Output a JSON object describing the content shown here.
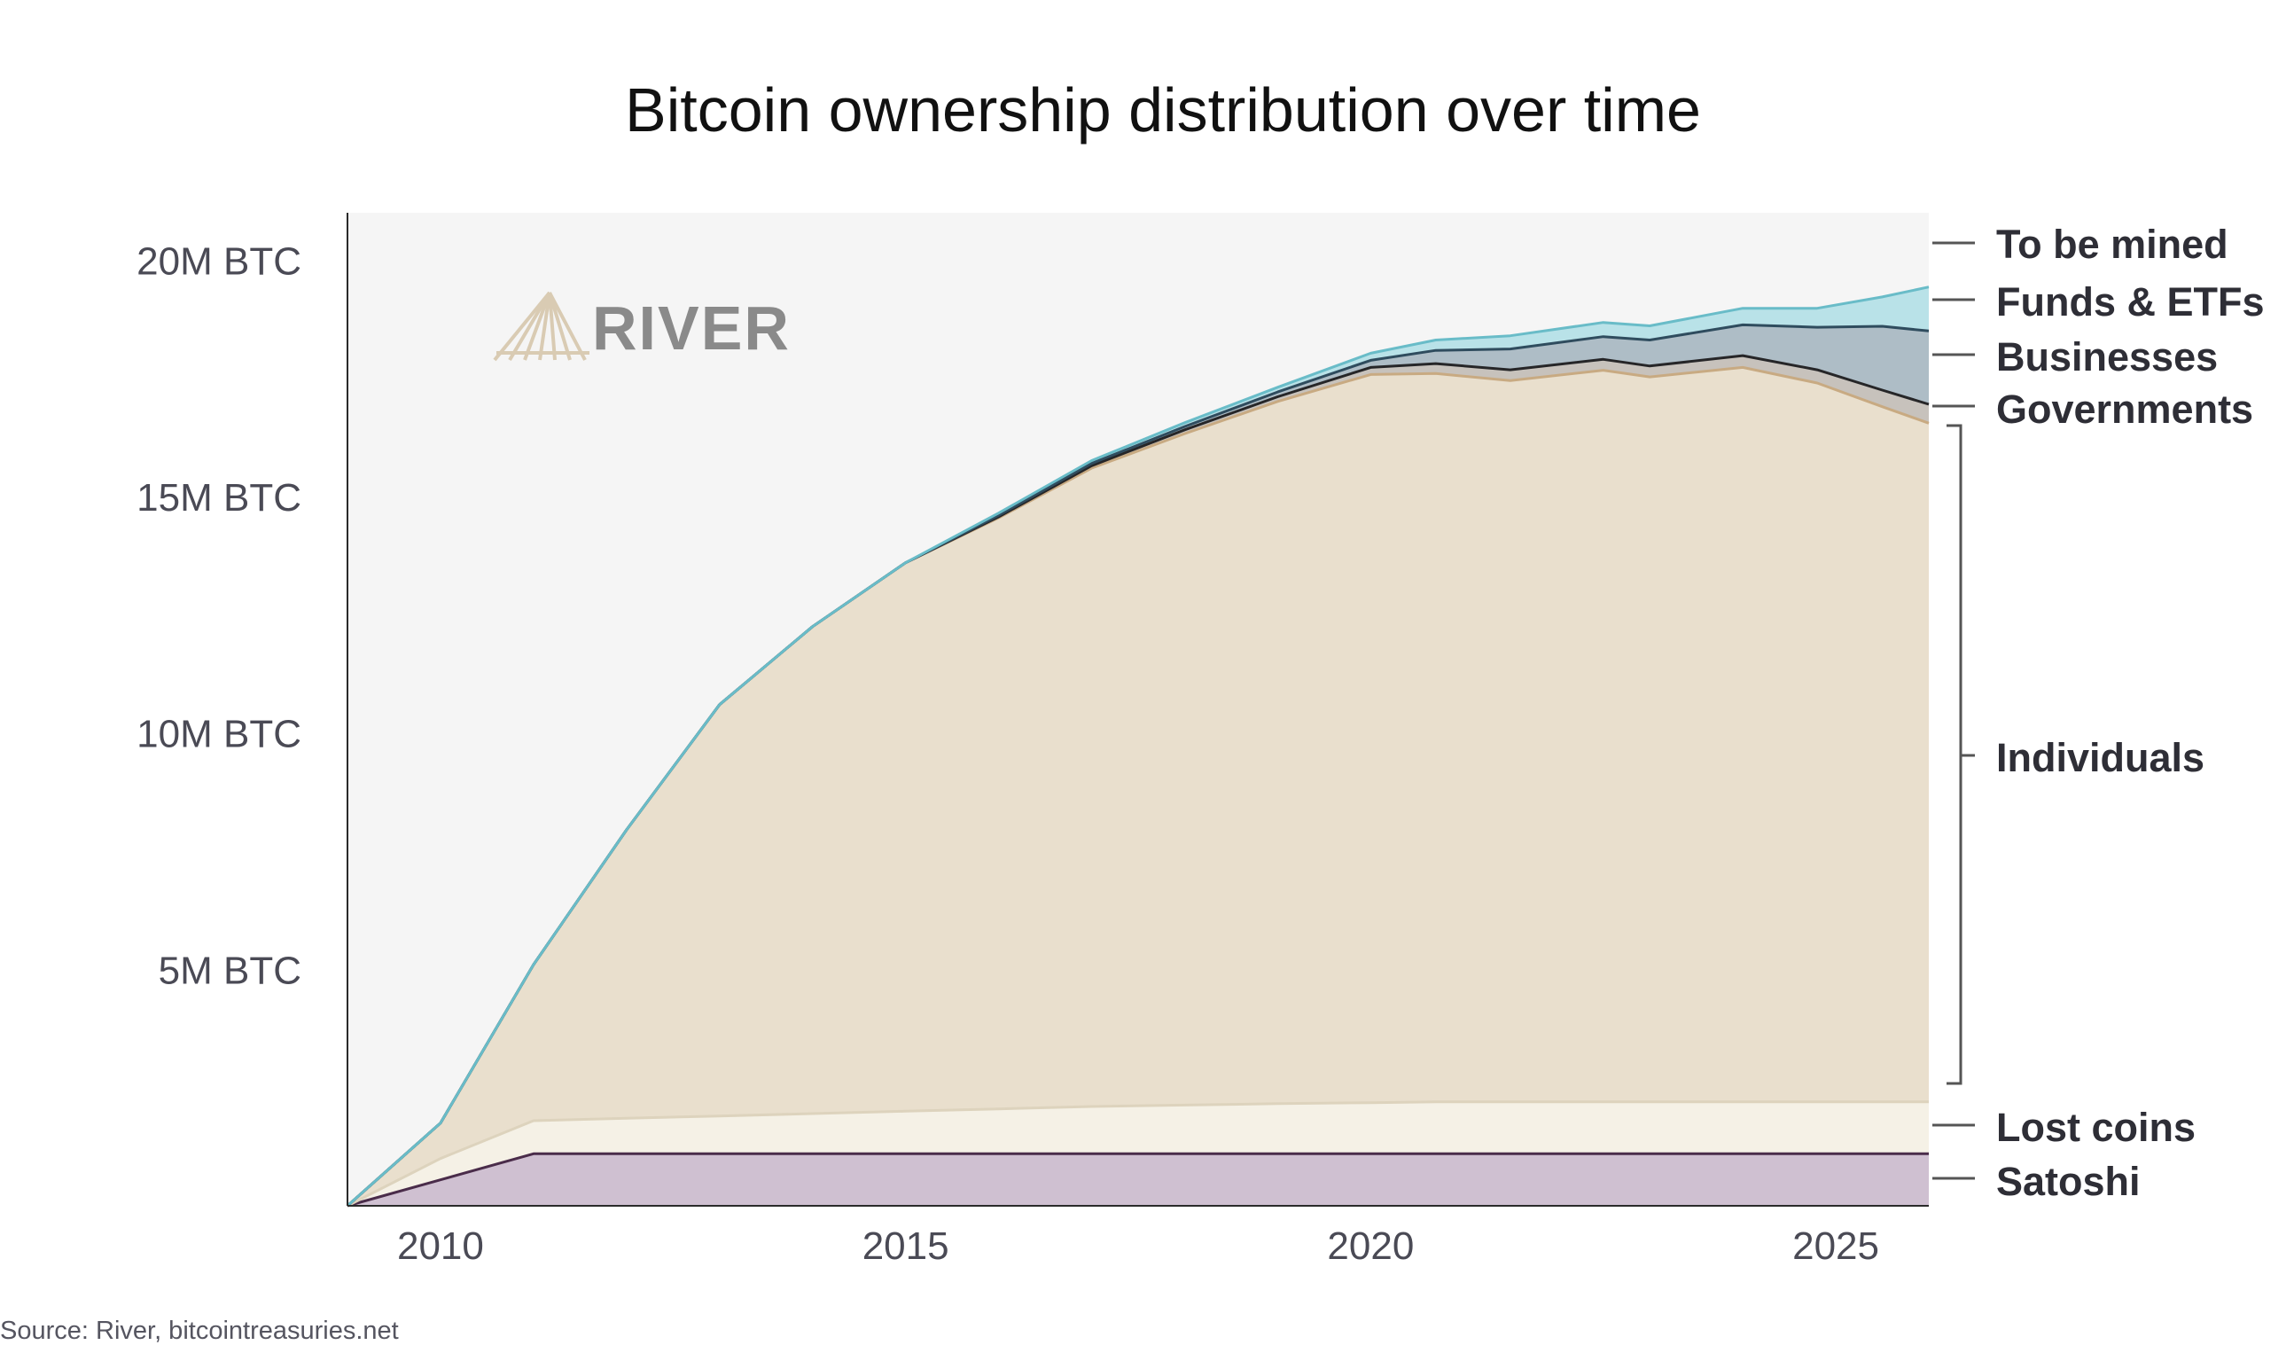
{
  "chart_data": {
    "type": "area",
    "stacked": true,
    "title": "Bitcoin ownership distribution over time",
    "xlabel": "",
    "ylabel": "",
    "x_range": [
      2009,
      2026
    ],
    "ylim": [
      0,
      21000000
    ],
    "x_ticks": [
      2010,
      2015,
      2020,
      2025
    ],
    "x_tick_labels": [
      "2010",
      "2015",
      "2020",
      "2025"
    ],
    "y_ticks": [
      5000000,
      10000000,
      15000000,
      20000000
    ],
    "y_tick_labels": [
      "5M BTC",
      "10M BTC",
      "15M BTC",
      "20M BTC"
    ],
    "x": [
      2009.0,
      2010.0,
      2011.0,
      2012.0,
      2013.0,
      2014.0,
      2015.0,
      2016.0,
      2017.0,
      2018.0,
      2019.0,
      2020.0,
      2020.7,
      2021.5,
      2022.5,
      2023.0,
      2024.0,
      2024.8,
      2025.5,
      2026.0
    ],
    "series": [
      {
        "name": "Satoshi",
        "color": "#cfc0d1",
        "line": "#4a2c4a",
        "values": [
          0,
          550000,
          1100000,
          1100000,
          1100000,
          1100000,
          1100000,
          1100000,
          1100000,
          1100000,
          1100000,
          1100000,
          1100000,
          1100000,
          1100000,
          1100000,
          1100000,
          1100000,
          1100000,
          1100000
        ]
      },
      {
        "name": "Lost coins",
        "color": "#f5f1e6",
        "line": "#ddd3bd",
        "values": [
          0,
          450000,
          700000,
          750000,
          800000,
          850000,
          900000,
          950000,
          1000000,
          1030000,
          1060000,
          1080000,
          1100000,
          1100000,
          1100000,
          1100000,
          1100000,
          1100000,
          1100000,
          1100000
        ]
      },
      {
        "name": "Individuals",
        "color": "#e9dfcd",
        "line": "#c8aa82",
        "values": [
          0,
          750000,
          3300000,
          6100000,
          8700000,
          10300000,
          11600000,
          12500000,
          13500000,
          14200000,
          14850000,
          15400000,
          15400000,
          15250000,
          15470000,
          15330000,
          15530000,
          15200000,
          14700000,
          14350000
        ]
      },
      {
        "name": "Governments",
        "color": "#c7c2bc",
        "line": "#262628",
        "values": [
          0,
          0,
          0,
          0,
          0,
          0,
          0,
          20000,
          50000,
          80000,
          100000,
          150000,
          210000,
          230000,
          230000,
          230000,
          250000,
          280000,
          350000,
          400000
        ]
      },
      {
        "name": "Businesses",
        "color": "#aebdc6",
        "line": "#2f4c5e",
        "values": [
          0,
          0,
          0,
          0,
          0,
          0,
          0,
          30000,
          50000,
          70000,
          100000,
          150000,
          280000,
          440000,
          480000,
          550000,
          650000,
          900000,
          1350000,
          1550000
        ]
      },
      {
        "name": "Funds & ETFs",
        "color": "#b9e2e8",
        "line": "#69bcc8",
        "values": [
          0,
          0,
          0,
          0,
          0,
          0,
          0,
          50000,
          60000,
          80000,
          100000,
          150000,
          220000,
          280000,
          300000,
          300000,
          350000,
          400000,
          620000,
          930000
        ]
      },
      {
        "name": "To be mined",
        "color": "#f5f5f5",
        "line": "#f5f5f5",
        "values": [
          0,
          0,
          0,
          0,
          0,
          0,
          0,
          0,
          0,
          0,
          0,
          0,
          0,
          0,
          0,
          0,
          0,
          0,
          0,
          0
        ]
      }
    ],
    "legend": [
      "To be mined",
      "Funds & ETFs",
      "Businesses",
      "Governments",
      "Individuals",
      "Lost coins",
      "Satoshi"
    ],
    "legend_placement": "right",
    "grid": false,
    "watermark": "RIVER",
    "source": "Source: River, bitcointreasuries.net"
  }
}
